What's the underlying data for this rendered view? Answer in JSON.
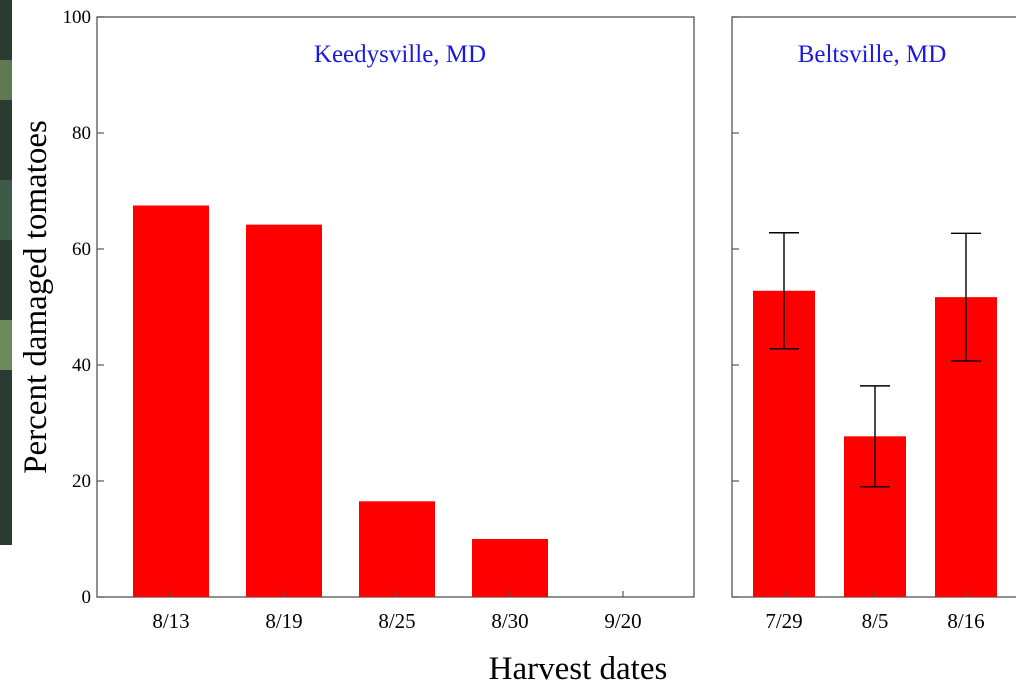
{
  "chart_data": [
    {
      "type": "bar",
      "title": "Keedysville, MD",
      "categories": [
        "8/13",
        "8/19",
        "8/25",
        "8/30",
        "9/20"
      ],
      "values": [
        67.5,
        64.2,
        16.5,
        10.0,
        0
      ],
      "ylabel": "Percent damaged tomatoes",
      "ylim": [
        0,
        100
      ],
      "yticks": [
        0,
        20,
        40,
        60,
        80,
        100
      ],
      "grid": false
    },
    {
      "type": "bar",
      "title": "Beltsville, MD",
      "categories": [
        "7/29",
        "8/5",
        "8/16"
      ],
      "values": [
        52.8,
        27.7,
        51.7
      ],
      "error": [
        10.0,
        8.7,
        11.0
      ],
      "ylim": [
        0,
        100
      ],
      "grid": false
    }
  ],
  "xlabel": "Harvest dates",
  "colors": {
    "bar": "#ff0000",
    "panel_title": "#1a1adf",
    "background_left_edge": "#2a3d33"
  }
}
